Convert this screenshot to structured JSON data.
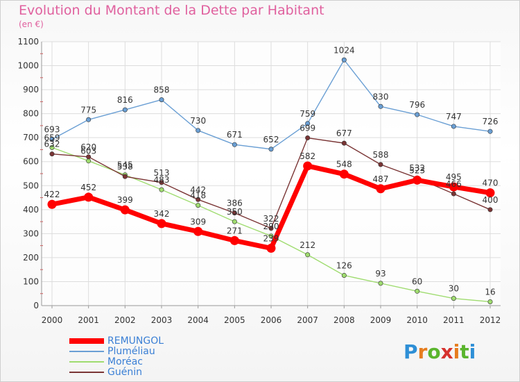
{
  "header": {
    "title": "Evolution du Montant de la Dette par Habitant",
    "unit": "(en €)"
  },
  "logo": {
    "letters": [
      "P",
      "r",
      "o",
      "x",
      "i",
      "t",
      "i"
    ],
    "colors": [
      "#2e8fd6",
      "#e67d1f",
      "#5ab52d",
      "#d6322e",
      "#e67d1f",
      "#5ab52d",
      "#2e8fd6"
    ]
  },
  "chart_data": {
    "type": "line",
    "title": "Evolution du Montant de la Dette par Habitant",
    "ylabel": "(en €)",
    "xlabel": "",
    "x": [
      "2000",
      "2001",
      "2002",
      "2003",
      "2004",
      "2005",
      "2006",
      "2007",
      "2008",
      "2009",
      "2010",
      "2011",
      "2012"
    ],
    "ylim": [
      0,
      1100
    ],
    "yticks": [
      0,
      100,
      200,
      300,
      400,
      500,
      600,
      700,
      800,
      900,
      1000,
      1100
    ],
    "grid": true,
    "legend_position": "bottom-left",
    "series": [
      {
        "name": "REMUNGOL",
        "color": "#ff0000",
        "values": [
          422,
          452,
          399,
          342,
          309,
          271,
          239,
          582,
          548,
          487,
          523,
          495,
          470
        ]
      },
      {
        "name": "Pluméliau",
        "color": "#6a9fd4",
        "values": [
          693,
          775,
          816,
          858,
          730,
          671,
          652,
          759,
          1024,
          830,
          796,
          747,
          726
        ]
      },
      {
        "name": "Moréac",
        "color": "#9fdc6f",
        "values": [
          659,
          603,
          545,
          483,
          418,
          350,
          290,
          212,
          126,
          93,
          60,
          30,
          16
        ]
      },
      {
        "name": "Guénin",
        "color": "#7a3535",
        "values": [
          632,
          620,
          538,
          513,
          442,
          386,
          322,
          699,
          677,
          588,
          532,
          466,
          400
        ]
      }
    ]
  }
}
